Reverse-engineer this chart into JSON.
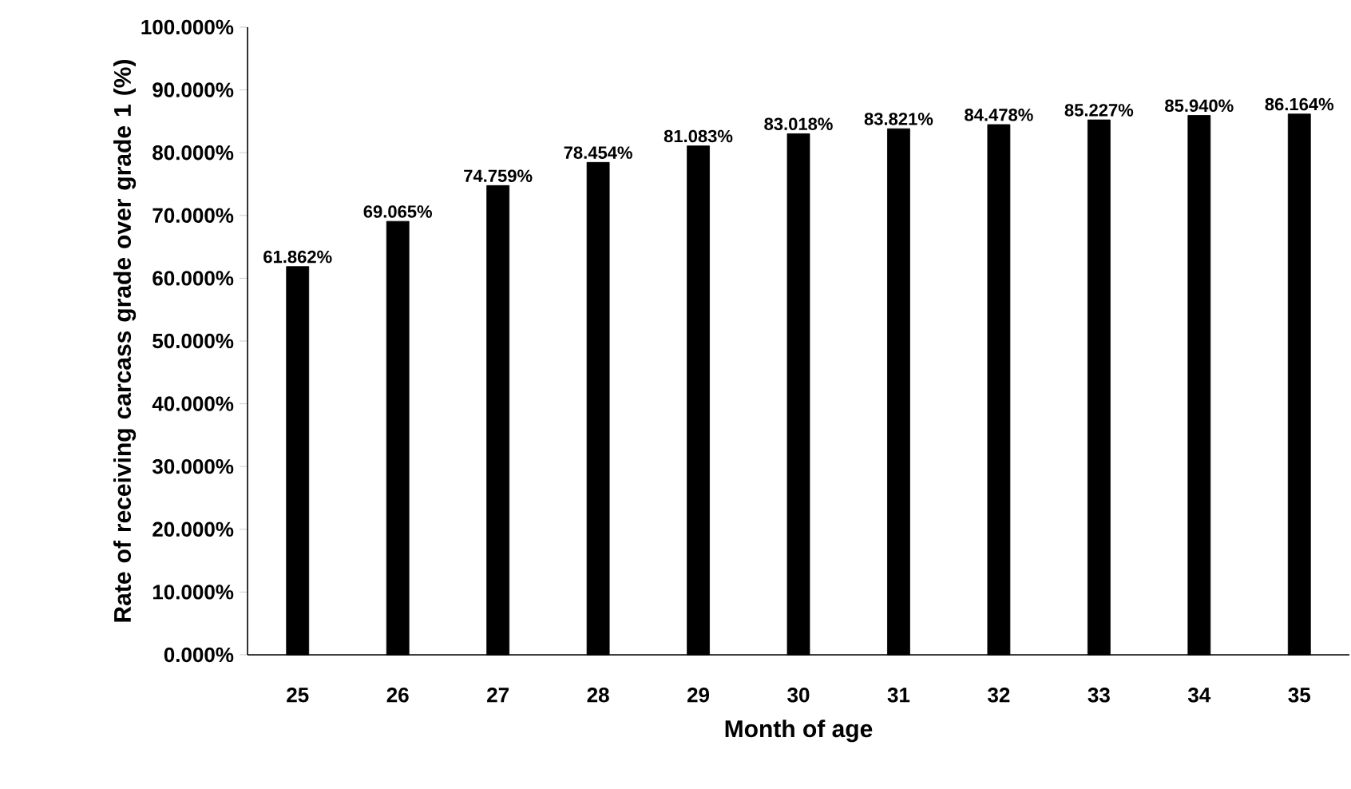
{
  "chart_data": {
    "type": "bar",
    "xlabel": "Month of age",
    "ylabel": "Rate of receiving carcass grade over grade 1 (%)",
    "categories": [
      "25",
      "26",
      "27",
      "28",
      "29",
      "30",
      "31",
      "32",
      "33",
      "34",
      "35"
    ],
    "values": [
      61.862,
      69.065,
      74.759,
      78.454,
      81.083,
      83.018,
      83.821,
      84.478,
      85.227,
      85.94,
      86.164
    ],
    "value_labels": [
      "61.862%",
      "69.065%",
      "74.759%",
      "78.454%",
      "81.083%",
      "83.018%",
      "83.821%",
      "84.478%",
      "85.227%",
      "85.940%",
      "86.164%"
    ],
    "color": "#000000",
    "ylim": [
      0,
      100
    ],
    "yticks": [
      {
        "value": 0,
        "label": "0.000%"
      },
      {
        "value": 10,
        "label": "10.000%"
      },
      {
        "value": 20,
        "label": "20.000%"
      },
      {
        "value": 30,
        "label": "30.000%"
      },
      {
        "value": 40,
        "label": "40.000%"
      },
      {
        "value": 50,
        "label": "50.000%"
      },
      {
        "value": 60,
        "label": "60.000%"
      },
      {
        "value": 70,
        "label": "70.000%"
      },
      {
        "value": 80,
        "label": "80.000%"
      },
      {
        "value": 90,
        "label": "90.000%"
      },
      {
        "value": 100,
        "label": "100.000%"
      }
    ]
  }
}
